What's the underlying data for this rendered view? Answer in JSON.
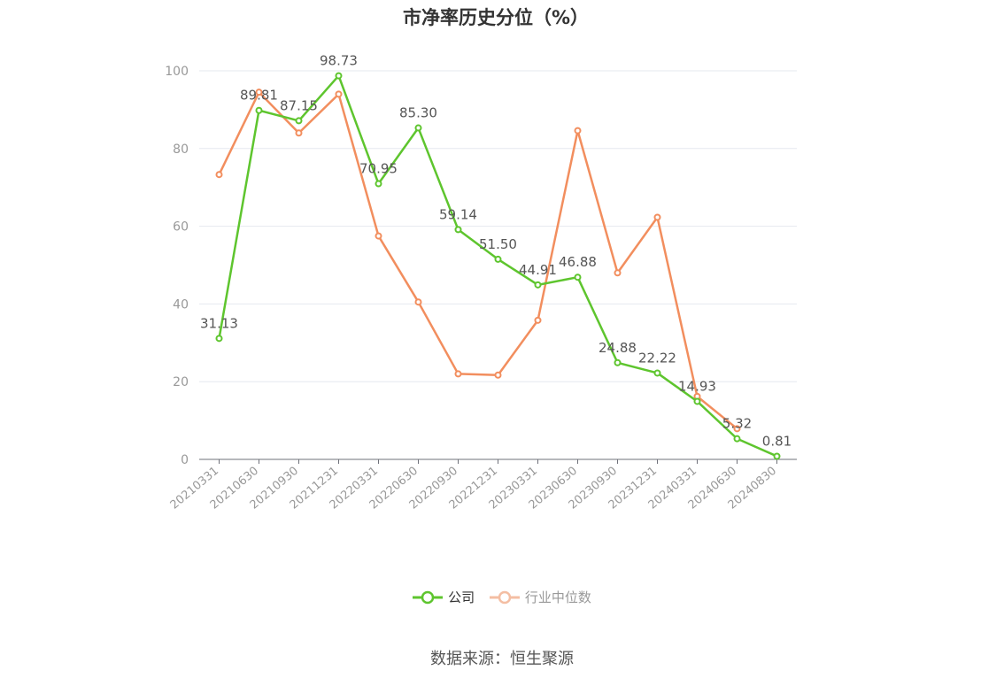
{
  "chart_data": {
    "type": "line",
    "title": "市净率历史分位（%）",
    "categories": [
      "20210331",
      "20210630",
      "20210930",
      "20211231",
      "20220331",
      "20220630",
      "20220930",
      "20221231",
      "20230331",
      "20230630",
      "20230930",
      "20231231",
      "20240331",
      "20240630",
      "20240830"
    ],
    "ylim": [
      0,
      100
    ],
    "yticks": [
      0,
      20,
      40,
      60,
      80,
      100
    ],
    "grid": true,
    "legend_position": "bottom",
    "series": [
      {
        "name": "公司",
        "color": "#5ec52e",
        "labels_shown": true,
        "values": [
          31.13,
          89.81,
          87.15,
          98.73,
          70.95,
          85.3,
          59.14,
          51.5,
          44.91,
          46.88,
          24.88,
          22.22,
          14.93,
          5.32,
          0.81
        ],
        "labels": [
          "31.13",
          "89.81",
          "87.15",
          "98.73",
          "70.95",
          "85.30",
          "59.14",
          "51.50",
          "44.91",
          "46.88",
          "24.88",
          "22.22",
          "14.93",
          "5.32",
          "0.81"
        ]
      },
      {
        "name": "行业中位数",
        "color": "#f28e5e",
        "labels_shown": false,
        "values": [
          73.3,
          94.5,
          84.0,
          94.0,
          57.5,
          40.5,
          22.0,
          21.7,
          35.8,
          84.6,
          48.0,
          62.3,
          16.2,
          7.9,
          null
        ]
      }
    ]
  },
  "legend": {
    "items": [
      {
        "label": "公司",
        "color": "#5ec52e",
        "text_color": "#333333"
      },
      {
        "label": "行业中位数",
        "color": "#f4bea3",
        "text_color": "#999999"
      }
    ]
  },
  "source": "数据来源：恒生聚源"
}
